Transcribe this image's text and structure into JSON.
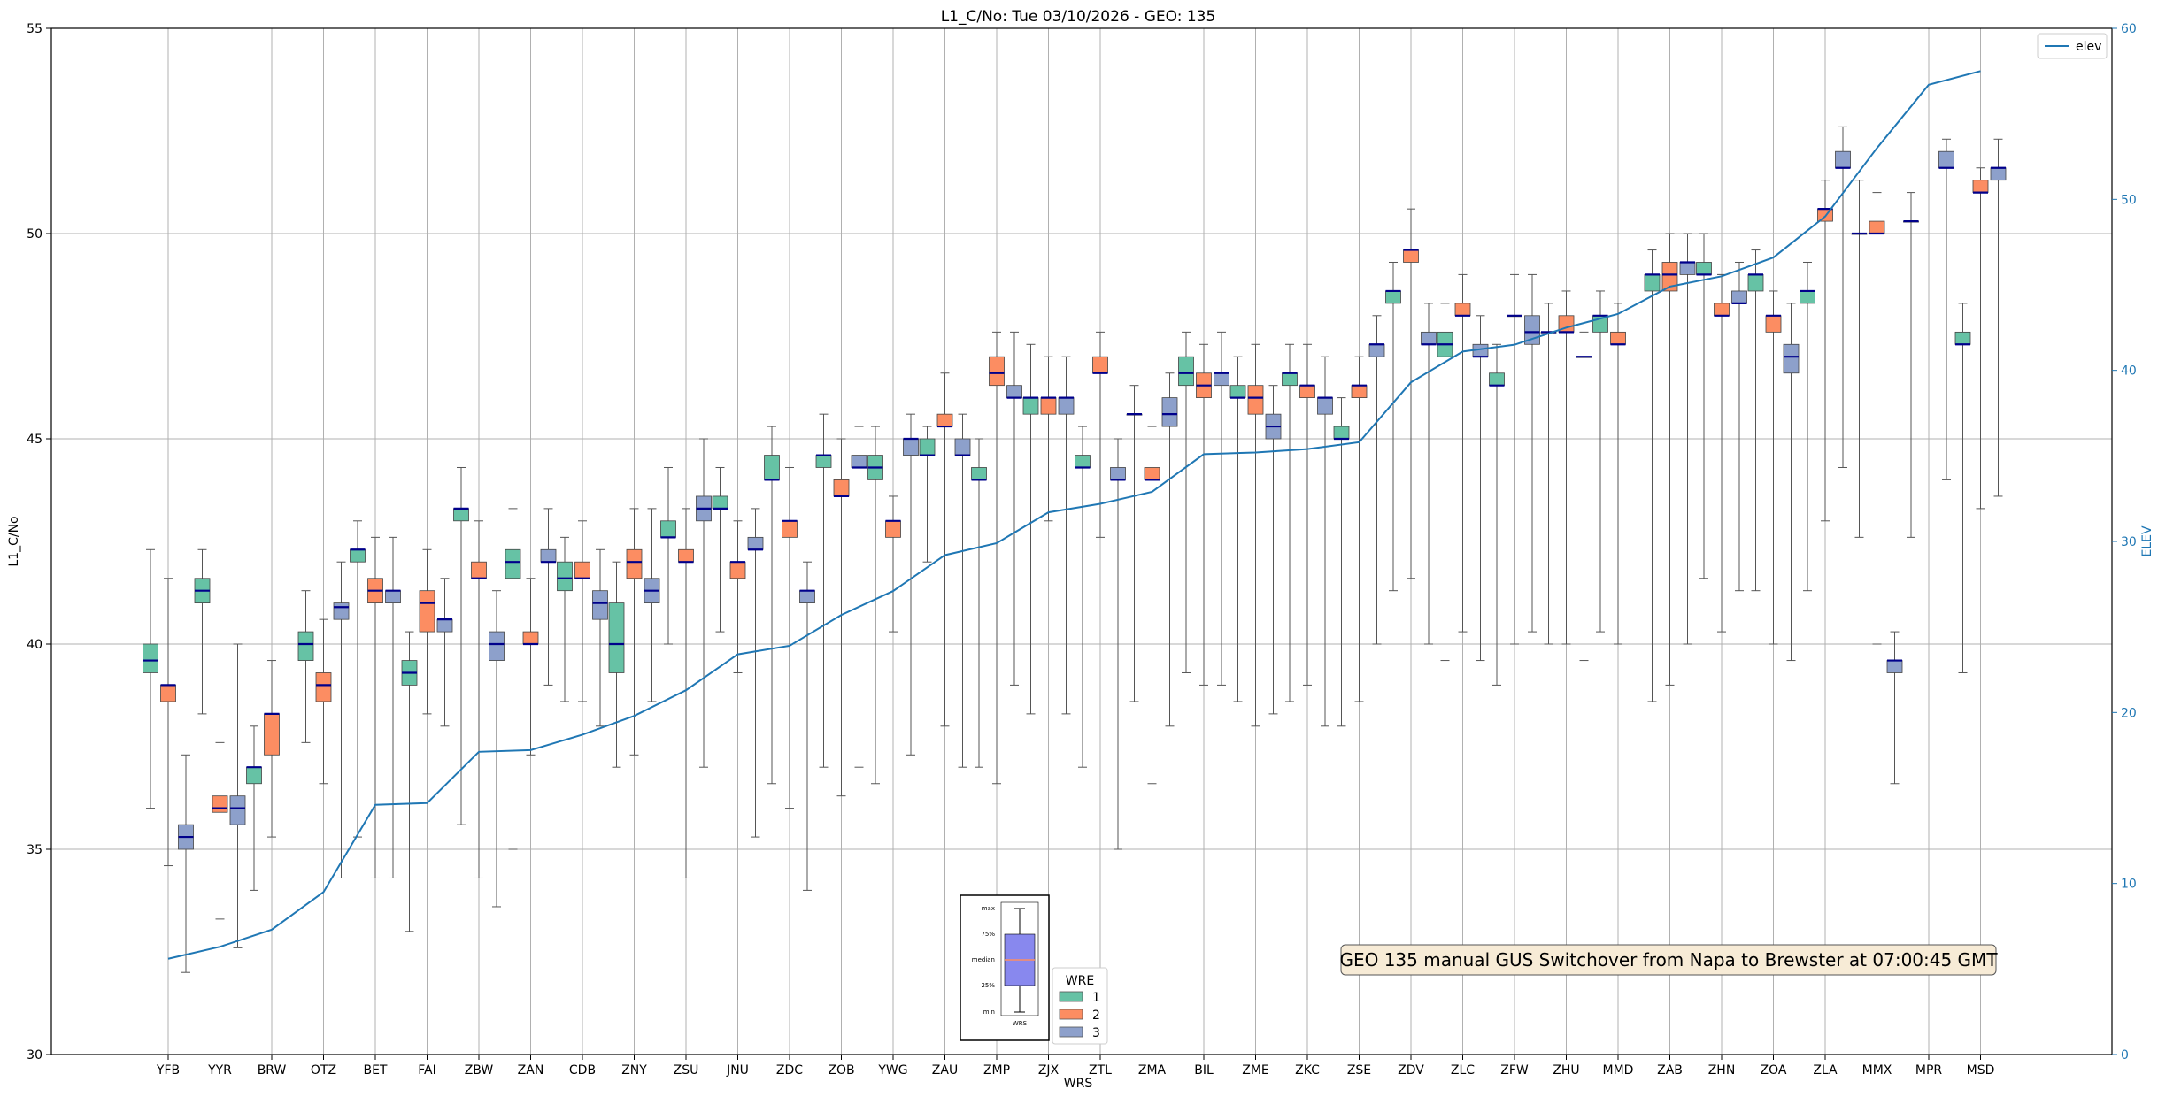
{
  "chart_data": {
    "type": "box",
    "title": "L1_C/No: Tue 03/10/2026 - GEO: 135",
    "xlabel": "WRS",
    "ylabel": "L1_C/No",
    "y2label": "ELEV",
    "ylim": [
      30,
      55
    ],
    "y2lim": [
      0,
      60
    ],
    "yticks": [
      "30",
      "35",
      "40",
      "45",
      "50",
      "55"
    ],
    "y2ticks": [
      "0",
      "10",
      "20",
      "30",
      "40",
      "50",
      "60"
    ],
    "grid": true,
    "categories": [
      "YFB",
      "YYR",
      "BRW",
      "OTZ",
      "BET",
      "FAI",
      "ZBW",
      "ZAN",
      "CDB",
      "ZNY",
      "ZSU",
      "JNU",
      "ZDC",
      "ZOB",
      "YWG",
      "ZAU",
      "ZMP",
      "ZJX",
      "ZTL",
      "ZMA",
      "BIL",
      "ZME",
      "ZKC",
      "ZSE",
      "ZDV",
      "ZLC",
      "ZFW",
      "ZHU",
      "MMD",
      "ZAB",
      "ZHN",
      "ZOA",
      "ZLA",
      "MMX",
      "MPR",
      "MSD"
    ],
    "wre_colors": {
      "1": "#66c2a5",
      "2": "#fc8d62",
      "3": "#8da0cb"
    },
    "boxes": [
      {
        "site": "YFB",
        "wre": "1",
        "min": 36.0,
        "q1": 39.3,
        "median": 39.6,
        "q3": 40.0,
        "max": 42.3
      },
      {
        "site": "YFB",
        "wre": "2",
        "min": 34.6,
        "q1": 38.6,
        "median": 39.0,
        "q3": 39.0,
        "max": 41.6
      },
      {
        "site": "YFB",
        "wre": "3",
        "min": 32.0,
        "q1": 35.0,
        "median": 35.3,
        "q3": 35.6,
        "max": 37.3
      },
      {
        "site": "YYR",
        "wre": "1",
        "min": 38.3,
        "q1": 41.0,
        "median": 41.3,
        "q3": 41.6,
        "max": 42.3
      },
      {
        "site": "YYR",
        "wre": "2",
        "min": 33.3,
        "q1": 35.9,
        "median": 36.0,
        "q3": 36.3,
        "max": 37.6
      },
      {
        "site": "YYR",
        "wre": "3",
        "min": 32.6,
        "q1": 35.6,
        "median": 36.0,
        "q3": 36.3,
        "max": 40.0
      },
      {
        "site": "BRW",
        "wre": "1",
        "min": 34.0,
        "q1": 36.6,
        "median": 37.0,
        "q3": 37.0,
        "max": 38.0
      },
      {
        "site": "BRW",
        "wre": "2",
        "min": 35.3,
        "q1": 37.3,
        "median": 38.3,
        "q3": 38.3,
        "max": 39.6
      },
      {
        "site": "OTZ",
        "wre": "1",
        "min": 37.6,
        "q1": 39.6,
        "median": 40.0,
        "q3": 40.3,
        "max": 41.3
      },
      {
        "site": "OTZ",
        "wre": "2",
        "min": 36.6,
        "q1": 38.6,
        "median": 39.0,
        "q3": 39.3,
        "max": 40.6
      },
      {
        "site": "OTZ",
        "wre": "3",
        "min": 34.3,
        "q1": 40.6,
        "median": 40.9,
        "q3": 41.0,
        "max": 42.0
      },
      {
        "site": "BET",
        "wre": "1",
        "min": 35.3,
        "q1": 42.0,
        "median": 42.3,
        "q3": 42.3,
        "max": 43.0
      },
      {
        "site": "BET",
        "wre": "2",
        "min": 34.3,
        "q1": 41.0,
        "median": 41.3,
        "q3": 41.6,
        "max": 42.6
      },
      {
        "site": "BET",
        "wre": "3",
        "min": 34.3,
        "q1": 41.0,
        "median": 41.3,
        "q3": 41.3,
        "max": 42.6
      },
      {
        "site": "FAI",
        "wre": "1",
        "min": 33.0,
        "q1": 39.0,
        "median": 39.3,
        "q3": 39.6,
        "max": 40.3
      },
      {
        "site": "FAI",
        "wre": "2",
        "min": 38.3,
        "q1": 40.3,
        "median": 41.0,
        "q3": 41.3,
        "max": 42.3
      },
      {
        "site": "FAI",
        "wre": "3",
        "min": 38.0,
        "q1": 40.3,
        "median": 40.6,
        "q3": 40.6,
        "max": 41.6
      },
      {
        "site": "ZBW",
        "wre": "1",
        "min": 35.6,
        "q1": 43.0,
        "median": 43.3,
        "q3": 43.3,
        "max": 44.3
      },
      {
        "site": "ZBW",
        "wre": "2",
        "min": 34.3,
        "q1": 41.6,
        "median": 41.6,
        "q3": 42.0,
        "max": 43.0
      },
      {
        "site": "ZBW",
        "wre": "3",
        "min": 33.6,
        "q1": 39.6,
        "median": 40.0,
        "q3": 40.3,
        "max": 41.3
      },
      {
        "site": "ZAN",
        "wre": "1",
        "min": 35.0,
        "q1": 41.6,
        "median": 42.0,
        "q3": 42.3,
        "max": 43.3
      },
      {
        "site": "ZAN",
        "wre": "2",
        "min": 37.3,
        "q1": 40.0,
        "median": 40.0,
        "q3": 40.3,
        "max": 41.6
      },
      {
        "site": "ZAN",
        "wre": "3",
        "min": 39.0,
        "q1": 42.0,
        "median": 42.0,
        "q3": 42.3,
        "max": 43.3
      },
      {
        "site": "CDB",
        "wre": "1",
        "min": 38.6,
        "q1": 41.3,
        "median": 41.6,
        "q3": 42.0,
        "max": 42.6
      },
      {
        "site": "CDB",
        "wre": "2",
        "min": 38.6,
        "q1": 41.6,
        "median": 41.6,
        "q3": 42.0,
        "max": 43.0
      },
      {
        "site": "CDB",
        "wre": "3",
        "min": 38.0,
        "q1": 40.6,
        "median": 41.0,
        "q3": 41.3,
        "max": 42.3
      },
      {
        "site": "ZNY",
        "wre": "1",
        "min": 37.0,
        "q1": 39.3,
        "median": 40.0,
        "q3": 41.0,
        "max": 42.0
      },
      {
        "site": "ZNY",
        "wre": "2",
        "min": 37.3,
        "q1": 41.6,
        "median": 42.0,
        "q3": 42.3,
        "max": 43.3
      },
      {
        "site": "ZNY",
        "wre": "3",
        "min": 38.6,
        "q1": 41.0,
        "median": 41.3,
        "q3": 41.6,
        "max": 43.3
      },
      {
        "site": "ZSU",
        "wre": "1",
        "min": 40.0,
        "q1": 42.6,
        "median": 42.6,
        "q3": 43.0,
        "max": 44.3
      },
      {
        "site": "ZSU",
        "wre": "2",
        "min": 34.3,
        "q1": 42.0,
        "median": 42.0,
        "q3": 42.3,
        "max": 43.3
      },
      {
        "site": "ZSU",
        "wre": "3",
        "min": 37.0,
        "q1": 43.0,
        "median": 43.3,
        "q3": 43.6,
        "max": 45.0
      },
      {
        "site": "JNU",
        "wre": "1",
        "min": 40.3,
        "q1": 43.3,
        "median": 43.3,
        "q3": 43.6,
        "max": 44.3
      },
      {
        "site": "JNU",
        "wre": "2",
        "min": 39.3,
        "q1": 41.6,
        "median": 42.0,
        "q3": 42.0,
        "max": 43.0
      },
      {
        "site": "JNU",
        "wre": "3",
        "min": 35.3,
        "q1": 42.3,
        "median": 42.3,
        "q3": 42.6,
        "max": 43.3
      },
      {
        "site": "ZDC",
        "wre": "1",
        "min": 36.6,
        "q1": 44.0,
        "median": 44.0,
        "q3": 44.6,
        "max": 45.3
      },
      {
        "site": "ZDC",
        "wre": "2",
        "min": 36.0,
        "q1": 42.6,
        "median": 43.0,
        "q3": 43.0,
        "max": 44.3
      },
      {
        "site": "ZDC",
        "wre": "3",
        "min": 34.0,
        "q1": 41.0,
        "median": 41.3,
        "q3": 41.3,
        "max": 42.0
      },
      {
        "site": "ZOB",
        "wre": "1",
        "min": 37.0,
        "q1": 44.3,
        "median": 44.6,
        "q3": 44.6,
        "max": 45.6
      },
      {
        "site": "ZOB",
        "wre": "2",
        "min": 36.3,
        "q1": 43.6,
        "median": 43.6,
        "q3": 44.0,
        "max": 45.0
      },
      {
        "site": "ZOB",
        "wre": "3",
        "min": 37.0,
        "q1": 44.3,
        "median": 44.3,
        "q3": 44.6,
        "max": 45.3
      },
      {
        "site": "YWG",
        "wre": "1",
        "min": 36.6,
        "q1": 44.0,
        "median": 44.3,
        "q3": 44.6,
        "max": 45.3
      },
      {
        "site": "YWG",
        "wre": "2",
        "min": 40.3,
        "q1": 42.6,
        "median": 43.0,
        "q3": 43.0,
        "max": 43.6
      },
      {
        "site": "YWG",
        "wre": "3",
        "min": 37.3,
        "q1": 44.6,
        "median": 45.0,
        "q3": 45.0,
        "max": 45.6
      },
      {
        "site": "ZAU",
        "wre": "1",
        "min": 42.0,
        "q1": 44.6,
        "median": 44.6,
        "q3": 45.0,
        "max": 45.3
      },
      {
        "site": "ZAU",
        "wre": "2",
        "min": 38.0,
        "q1": 45.3,
        "median": 45.3,
        "q3": 45.6,
        "max": 46.6
      },
      {
        "site": "ZAU",
        "wre": "3",
        "min": 37.0,
        "q1": 44.6,
        "median": 44.6,
        "q3": 45.0,
        "max": 45.6
      },
      {
        "site": "ZMP",
        "wre": "1",
        "min": 37.0,
        "q1": 44.0,
        "median": 44.0,
        "q3": 44.3,
        "max": 45.0
      },
      {
        "site": "ZMP",
        "wre": "2",
        "min": 36.6,
        "q1": 46.3,
        "median": 46.6,
        "q3": 47.0,
        "max": 47.6
      },
      {
        "site": "ZMP",
        "wre": "3",
        "min": 39.0,
        "q1": 46.0,
        "median": 46.0,
        "q3": 46.3,
        "max": 47.6
      },
      {
        "site": "ZJX",
        "wre": "1",
        "min": 38.3,
        "q1": 45.6,
        "median": 46.0,
        "q3": 46.0,
        "max": 47.3
      },
      {
        "site": "ZJX",
        "wre": "2",
        "min": 43.0,
        "q1": 45.6,
        "median": 46.0,
        "q3": 46.0,
        "max": 47.0
      },
      {
        "site": "ZJX",
        "wre": "3",
        "min": 38.3,
        "q1": 45.6,
        "median": 46.0,
        "q3": 46.0,
        "max": 47.0
      },
      {
        "site": "ZTL",
        "wre": "1",
        "min": 37.0,
        "q1": 44.3,
        "median": 44.3,
        "q3": 44.6,
        "max": 45.3
      },
      {
        "site": "ZTL",
        "wre": "2",
        "min": 42.6,
        "q1": 46.6,
        "median": 46.6,
        "q3": 47.0,
        "max": 47.6
      },
      {
        "site": "ZTL",
        "wre": "3",
        "min": 35.0,
        "q1": 44.0,
        "median": 44.0,
        "q3": 44.3,
        "max": 45.0
      },
      {
        "site": "ZMA",
        "wre": "1",
        "min": 38.6,
        "q1": 45.6,
        "median": 45.6,
        "q3": 45.6,
        "max": 46.3
      },
      {
        "site": "ZMA",
        "wre": "2",
        "min": 36.6,
        "q1": 44.0,
        "median": 44.0,
        "q3": 44.3,
        "max": 45.3
      },
      {
        "site": "ZMA",
        "wre": "3",
        "min": 38.0,
        "q1": 45.3,
        "median": 45.6,
        "q3": 46.0,
        "max": 46.6
      },
      {
        "site": "BIL",
        "wre": "1",
        "min": 39.3,
        "q1": 46.3,
        "median": 46.6,
        "q3": 47.0,
        "max": 47.6
      },
      {
        "site": "BIL",
        "wre": "2",
        "min": 39.0,
        "q1": 46.0,
        "median": 46.3,
        "q3": 46.6,
        "max": 47.3
      },
      {
        "site": "BIL",
        "wre": "3",
        "min": 39.0,
        "q1": 46.3,
        "median": 46.6,
        "q3": 46.6,
        "max": 47.6
      },
      {
        "site": "ZME",
        "wre": "1",
        "min": 38.6,
        "q1": 46.0,
        "median": 46.0,
        "q3": 46.3,
        "max": 47.0
      },
      {
        "site": "ZME",
        "wre": "2",
        "min": 38.0,
        "q1": 45.6,
        "median": 46.0,
        "q3": 46.3,
        "max": 47.3
      },
      {
        "site": "ZME",
        "wre": "3",
        "min": 38.3,
        "q1": 45.0,
        "median": 45.3,
        "q3": 45.6,
        "max": 46.3
      },
      {
        "site": "ZKC",
        "wre": "1",
        "min": 38.6,
        "q1": 46.3,
        "median": 46.6,
        "q3": 46.6,
        "max": 47.3
      },
      {
        "site": "ZKC",
        "wre": "2",
        "min": 39.0,
        "q1": 46.0,
        "median": 46.3,
        "q3": 46.3,
        "max": 47.3
      },
      {
        "site": "ZKC",
        "wre": "3",
        "min": 38.0,
        "q1": 45.6,
        "median": 46.0,
        "q3": 46.0,
        "max": 47.0
      },
      {
        "site": "ZSE",
        "wre": "1",
        "min": 38.0,
        "q1": 45.0,
        "median": 45.0,
        "q3": 45.3,
        "max": 46.0
      },
      {
        "site": "ZSE",
        "wre": "2",
        "min": 38.6,
        "q1": 46.0,
        "median": 46.3,
        "q3": 46.3,
        "max": 47.0
      },
      {
        "site": "ZSE",
        "wre": "3",
        "min": 40.0,
        "q1": 47.0,
        "median": 47.3,
        "q3": 47.3,
        "max": 48.0
      },
      {
        "site": "ZDV",
        "wre": "1",
        "min": 41.3,
        "q1": 48.3,
        "median": 48.6,
        "q3": 48.6,
        "max": 49.3
      },
      {
        "site": "ZDV",
        "wre": "2",
        "min": 41.6,
        "q1": 49.3,
        "median": 49.6,
        "q3": 49.6,
        "max": 50.6
      },
      {
        "site": "ZDV",
        "wre": "3",
        "min": 40.0,
        "q1": 47.3,
        "median": 47.3,
        "q3": 47.6,
        "max": 48.3
      },
      {
        "site": "ZLC",
        "wre": "1",
        "min": 39.6,
        "q1": 47.0,
        "median": 47.3,
        "q3": 47.6,
        "max": 48.3
      },
      {
        "site": "ZLC",
        "wre": "2",
        "min": 40.3,
        "q1": 48.0,
        "median": 48.0,
        "q3": 48.3,
        "max": 49.0
      },
      {
        "site": "ZLC",
        "wre": "3",
        "min": 39.6,
        "q1": 47.0,
        "median": 47.0,
        "q3": 47.3,
        "max": 48.0
      },
      {
        "site": "ZFW",
        "wre": "1",
        "min": 39.0,
        "q1": 46.3,
        "median": 46.3,
        "q3": 46.6,
        "max": 47.3
      },
      {
        "site": "ZFW",
        "wre": "2",
        "min": 40.0,
        "q1": 48.0,
        "median": 48.0,
        "q3": 48.0,
        "max": 49.0
      },
      {
        "site": "ZFW",
        "wre": "3",
        "min": 40.3,
        "q1": 47.3,
        "median": 47.6,
        "q3": 48.0,
        "max": 49.0
      },
      {
        "site": "ZHU",
        "wre": "1",
        "min": 40.0,
        "q1": 47.6,
        "median": 47.6,
        "q3": 47.6,
        "max": 48.3
      },
      {
        "site": "ZHU",
        "wre": "2",
        "min": 40.0,
        "q1": 47.6,
        "median": 47.6,
        "q3": 48.0,
        "max": 48.6
      },
      {
        "site": "ZHU",
        "wre": "3",
        "min": 39.6,
        "q1": 47.0,
        "median": 47.0,
        "q3": 47.0,
        "max": 47.6
      },
      {
        "site": "MMD",
        "wre": "1",
        "min": 40.3,
        "q1": 47.6,
        "median": 48.0,
        "q3": 48.0,
        "max": 48.6
      },
      {
        "site": "MMD",
        "wre": "2",
        "min": 40.0,
        "q1": 47.3,
        "median": 47.3,
        "q3": 47.6,
        "max": 48.3
      },
      {
        "site": "ZAB",
        "wre": "1",
        "min": 38.6,
        "q1": 48.6,
        "median": 49.0,
        "q3": 49.0,
        "max": 49.6
      },
      {
        "site": "ZAB",
        "wre": "2",
        "min": 39.0,
        "q1": 48.6,
        "median": 49.0,
        "q3": 49.3,
        "max": 50.0
      },
      {
        "site": "ZAB",
        "wre": "3",
        "min": 40.0,
        "q1": 49.0,
        "median": 49.3,
        "q3": 49.3,
        "max": 50.0
      },
      {
        "site": "ZHN",
        "wre": "1",
        "min": 41.6,
        "q1": 49.0,
        "median": 49.0,
        "q3": 49.3,
        "max": 50.0
      },
      {
        "site": "ZHN",
        "wre": "2",
        "min": 40.3,
        "q1": 48.0,
        "median": 48.0,
        "q3": 48.3,
        "max": 49.0
      },
      {
        "site": "ZHN",
        "wre": "3",
        "min": 41.3,
        "q1": 48.3,
        "median": 48.3,
        "q3": 48.6,
        "max": 49.3
      },
      {
        "site": "ZOA",
        "wre": "1",
        "min": 41.3,
        "q1": 48.6,
        "median": 49.0,
        "q3": 49.0,
        "max": 49.6
      },
      {
        "site": "ZOA",
        "wre": "2",
        "min": 40.0,
        "q1": 47.6,
        "median": 48.0,
        "q3": 48.0,
        "max": 48.6
      },
      {
        "site": "ZOA",
        "wre": "3",
        "min": 39.6,
        "q1": 46.6,
        "median": 47.0,
        "q3": 47.3,
        "max": 48.3
      },
      {
        "site": "ZLA",
        "wre": "1",
        "min": 41.3,
        "q1": 48.3,
        "median": 48.6,
        "q3": 48.6,
        "max": 49.3
      },
      {
        "site": "ZLA",
        "wre": "2",
        "min": 43.0,
        "q1": 50.3,
        "median": 50.6,
        "q3": 50.6,
        "max": 51.3
      },
      {
        "site": "ZLA",
        "wre": "3",
        "min": 44.3,
        "q1": 51.6,
        "median": 51.6,
        "q3": 52.0,
        "max": 52.6
      },
      {
        "site": "MMX",
        "wre": "1",
        "min": 42.6,
        "q1": 50.0,
        "median": 50.0,
        "q3": 50.0,
        "max": 51.3
      },
      {
        "site": "MMX",
        "wre": "2",
        "min": 40.0,
        "q1": 50.0,
        "median": 50.0,
        "q3": 50.3,
        "max": 51.0
      },
      {
        "site": "MMX",
        "wre": "3",
        "min": 36.6,
        "q1": 39.3,
        "median": 39.6,
        "q3": 39.6,
        "max": 40.3
      },
      {
        "site": "MPR",
        "wre": "1",
        "min": 42.6,
        "q1": 50.3,
        "median": 50.3,
        "q3": 50.3,
        "max": 51.0
      },
      {
        "site": "MPR",
        "wre": "3",
        "min": 44.0,
        "q1": 51.6,
        "median": 51.6,
        "q3": 52.0,
        "max": 52.3
      },
      {
        "site": "MSD",
        "wre": "1",
        "min": 39.3,
        "q1": 47.3,
        "median": 47.3,
        "q3": 47.6,
        "max": 48.3
      },
      {
        "site": "MSD",
        "wre": "2",
        "min": 43.3,
        "q1": 51.0,
        "median": 51.0,
        "q3": 51.3,
        "max": 51.6
      },
      {
        "site": "MSD",
        "wre": "3",
        "min": 43.6,
        "q1": 51.3,
        "median": 51.6,
        "q3": 51.6,
        "max": 52.3
      }
    ],
    "elev_series": {
      "name": "elev",
      "color": "#1f77b4",
      "values": [
        5.6,
        6.3,
        7.3,
        9.5,
        14.6,
        14.7,
        17.7,
        17.8,
        18.7,
        19.8,
        21.3,
        23.4,
        23.9,
        25.7,
        27.1,
        29.2,
        29.9,
        31.7,
        32.2,
        32.9,
        35.1,
        35.2,
        35.4,
        35.8,
        39.3,
        41.1,
        41.5,
        42.5,
        43.3,
        44.9,
        45.5,
        46.6,
        49.0,
        53.0,
        56.7,
        57.5
      ]
    },
    "legend": {
      "entries": [
        "elev"
      ],
      "location": "top-right"
    },
    "wre_legend": {
      "title": "WRE",
      "entries": [
        "1",
        "2",
        "3"
      ]
    },
    "key_inset": {
      "labels": [
        "max",
        "75%",
        "median",
        "25%",
        "min"
      ],
      "xlabel": "WRS"
    },
    "annotation": "GEO 135 manual GUS Switchover from Napa to Brewster at 07:00:45 GMT"
  }
}
